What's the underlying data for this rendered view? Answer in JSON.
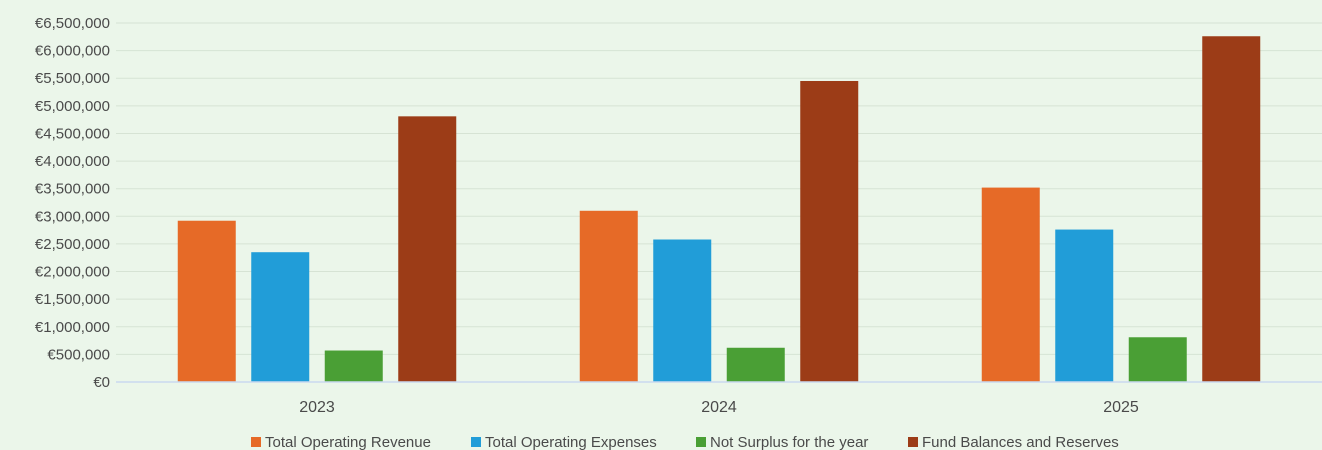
{
  "chart_data": {
    "type": "bar",
    "title": "",
    "xlabel": "",
    "ylabel": "",
    "categories": [
      "2023",
      "2024",
      "2025"
    ],
    "ylim": [
      0,
      6500000
    ],
    "y_ticks": [
      "€0",
      "€500,000",
      "€1,000,000",
      "€1,500,000",
      "€2,000,000",
      "€2,500,000",
      "€3,000,000",
      "€3,500,000",
      "€4,000,000",
      "€4,500,000",
      "€5,000,000",
      "€5,500,000",
      "€6,000,000",
      "€6,500,000"
    ],
    "grid": true,
    "legend_position": "bottom",
    "series": [
      {
        "name": "Total Operating Revenue",
        "color": "#e66a27",
        "values": [
          2920000,
          3100000,
          3520000
        ]
      },
      {
        "name": "Total Operating Expenses",
        "color": "#219dd8",
        "values": [
          2350000,
          2580000,
          2760000
        ]
      },
      {
        "name": "Not Surplus for the year",
        "color": "#4a9f35",
        "values": [
          570000,
          620000,
          810000
        ]
      },
      {
        "name": "Fund Balances and Reserves",
        "color": "#9c3c17",
        "values": [
          4810000,
          5450000,
          6260000
        ]
      }
    ]
  }
}
